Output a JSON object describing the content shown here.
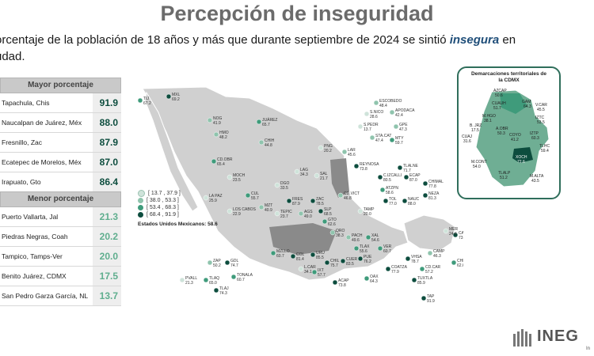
{
  "title": "Percepción de inseguridad",
  "subtitle": {
    "line1_before": "orcentaje de la población de 18 años y más que durante septiembre de 2024 se sintió ",
    "line1_emph": "insegura",
    "line1_after": " en",
    "line2": "udad."
  },
  "mayor": {
    "header": "Mayor porcentaje",
    "rows": [
      {
        "name": "Tapachula, Chis",
        "value": "91.9"
      },
      {
        "name": "Naucalpan de Juárez, Méx",
        "value": "88.0"
      },
      {
        "name": "Fresnillo, Zac",
        "value": "87.9"
      },
      {
        "name": "Ecatepec de Morelos, Méx",
        "value": "87.0"
      },
      {
        "name": "Irapuato, Gto",
        "value": "86.4"
      }
    ]
  },
  "menor": {
    "header": "Menor porcentaje",
    "rows": [
      {
        "name": "Puerto Vallarta, Jal",
        "value": "21.3"
      },
      {
        "name": "Piedras Negras, Coah",
        "value": "20.2"
      },
      {
        "name": "Tampico, Tamps-Ver",
        "value": "20.0"
      },
      {
        "name": "Benito Juárez, CDMX",
        "value": "17.5"
      },
      {
        "name": "San Pedro Garza García, NL",
        "value": "13.7"
      }
    ]
  },
  "legend": {
    "items": [
      {
        "label": "[ 13.7 , 37.9 ]",
        "color": "#cfe3da"
      },
      {
        "label": "[ 38.0 , 53.3 ]",
        "color": "#8fc4ad"
      },
      {
        "label": "[ 53.4 , 68.3 ]",
        "color": "#3f9b7b"
      },
      {
        "label": "[ 68.4 , 91.9 ]",
        "color": "#0d4d3e"
      }
    ],
    "national": "Estados Unidos Mexicanos:  58.6"
  },
  "cities": [
    {
      "name": "TIJ",
      "value": "67.2"
    },
    {
      "name": "MXL",
      "value": "69.2"
    },
    {
      "name": "NOG",
      "value": "41.9"
    },
    {
      "name": "JUÁREZ",
      "value": "65.7"
    },
    {
      "name": "HMO",
      "value": "48.2"
    },
    {
      "name": "CHIH",
      "value": "44.8"
    },
    {
      "name": "ESCOBEDO",
      "value": "48.4"
    },
    {
      "name": "S.NICO",
      "value": "28.6"
    },
    {
      "name": "APODACA",
      "value": "42.4"
    },
    {
      "name": "S.PEDR",
      "value": "13.7"
    },
    {
      "name": "GPE",
      "value": "47.3"
    },
    {
      "name": "STA.CAT",
      "value": "47.4"
    },
    {
      "name": "MTY",
      "value": "59.7"
    },
    {
      "name": "PNG",
      "value": "20.2"
    },
    {
      "name": "LAR",
      "value": "45.6"
    },
    {
      "name": "CD.OBR",
      "value": "65.4"
    },
    {
      "name": "MOCH",
      "value": "23.5"
    },
    {
      "name": "LAG",
      "value": "34.3"
    },
    {
      "name": "SAL",
      "value": "21.7"
    },
    {
      "name": "REYNOSA",
      "value": "73.8"
    },
    {
      "name": "LA PAZ",
      "value": "25.9"
    },
    {
      "name": "CUL",
      "value": "55.7"
    },
    {
      "name": "DGO",
      "value": "33.5"
    },
    {
      "name": "LOS CABOS",
      "value": "22.9"
    },
    {
      "name": "MZT",
      "value": "40.9"
    },
    {
      "name": "FRES",
      "value": "87.9"
    },
    {
      "name": "ZAC",
      "value": "78.5"
    },
    {
      "name": "CD.VICT",
      "value": "46.8"
    },
    {
      "name": "TEPIC",
      "value": "23.7"
    },
    {
      "name": "AGS",
      "value": "49.0"
    },
    {
      "name": "SLP",
      "value": "68.5"
    },
    {
      "name": "TAMP",
      "value": "20.0"
    },
    {
      "name": "GTO",
      "value": "62.6"
    },
    {
      "name": "PACH",
      "value": "49.6"
    },
    {
      "name": "XAL",
      "value": "54.6"
    },
    {
      "name": "QRO",
      "value": "38.3"
    },
    {
      "name": "MZLLO",
      "value": "60.7"
    },
    {
      "name": "COL",
      "value": "81.4"
    },
    {
      "name": "URU",
      "value": "85.5"
    },
    {
      "name": "TLAX",
      "value": "55.6"
    },
    {
      "name": "VER",
      "value": "60.7"
    },
    {
      "name": "L.CAR",
      "value": "34.1"
    },
    {
      "name": "IXT",
      "value": "57.7"
    },
    {
      "name": "CHIL",
      "value": "75.7"
    },
    {
      "name": "CUER",
      "value": "83.5"
    },
    {
      "name": "PUE",
      "value": "76.2"
    },
    {
      "name": "ACAP",
      "value": "73.8"
    },
    {
      "name": "OAX",
      "value": "64.3"
    },
    {
      "name": "COATZA",
      "value": "77.9"
    },
    {
      "name": "VHSA",
      "value": "78.7"
    },
    {
      "name": "CD.CAR",
      "value": "57.2"
    },
    {
      "name": "TUXTLA",
      "value": "85.9"
    },
    {
      "name": "TAP",
      "value": "91.9"
    },
    {
      "name": "CAMP",
      "value": "46.3"
    },
    {
      "name": "MER",
      "value": "24.6"
    },
    {
      "name": "CANCUN",
      "value": "73.2"
    },
    {
      "name": "CHETUMAL",
      "value": "62.6"
    },
    {
      "name": "ZAP",
      "value": "50.2"
    },
    {
      "name": "GDL",
      "value": "74.7"
    },
    {
      "name": "TONALA",
      "value": "60.7"
    },
    {
      "name": "PVALL",
      "value": "21.3"
    },
    {
      "name": "TLAQ",
      "value": "65.0"
    },
    {
      "name": "TLAJ",
      "value": "74.3"
    },
    {
      "name": "TLALNE",
      "value": "71.7"
    },
    {
      "name": "C.IZCALLI",
      "value": "80.5"
    },
    {
      "name": "ECAP",
      "value": "87.0"
    },
    {
      "name": "CHIMAL",
      "value": "77.8"
    },
    {
      "name": "ATZPN",
      "value": "58.6"
    },
    {
      "name": "NEZA",
      "value": "81.3"
    },
    {
      "name": "TOL",
      "value": "77.0"
    },
    {
      "name": "NAUC",
      "value": "88.0"
    }
  ],
  "cdmx": {
    "title": "Demarcaciones territoriales de\nla CDMX",
    "items": [
      {
        "name": "AZCAP",
        "value": "50.6"
      },
      {
        "name": "GAM",
        "value": "64.3"
      },
      {
        "name": "CUAUH",
        "value": "51.7"
      },
      {
        "name": "V.CAR",
        "value": "45.5"
      },
      {
        "name": "M.HGO",
        "value": "38.1"
      },
      {
        "name": "IZTC",
        "value": "53.5"
      },
      {
        "name": "B. JRZ",
        "value": "17.5"
      },
      {
        "name": "CUAJ",
        "value": "31.6"
      },
      {
        "name": "A.OBR",
        "value": "50.3"
      },
      {
        "name": "COYO",
        "value": "41.2"
      },
      {
        "name": "IZTP",
        "value": "60.3"
      },
      {
        "name": "TLHC",
        "value": "59.4"
      },
      {
        "name": "M.CONT",
        "value": "54.0"
      },
      {
        "name": "XOCH",
        "value": "72.6"
      },
      {
        "name": "TLALP",
        "value": "51.2"
      },
      {
        "name": "M.ALTA",
        "value": "43.5"
      }
    ]
  },
  "logo": {
    "text": "INEG",
    "subtext": "In"
  }
}
